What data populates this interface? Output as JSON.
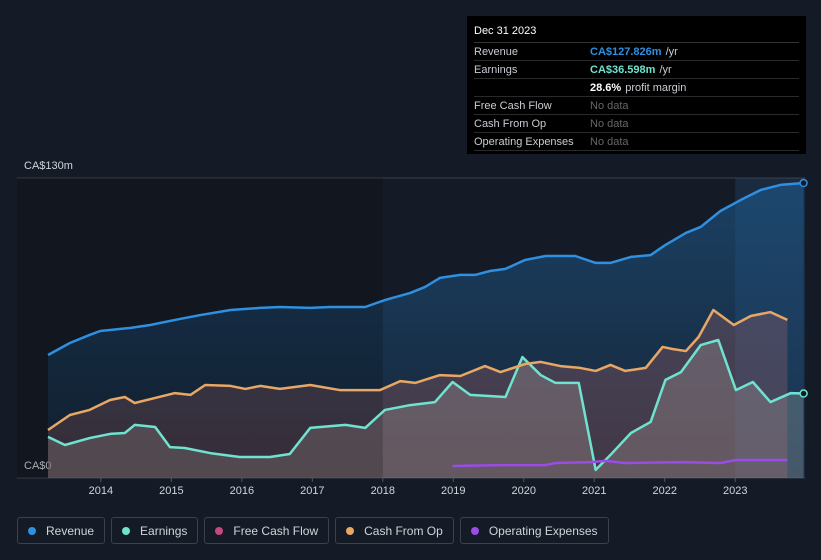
{
  "chart_data": {
    "type": "line",
    "xlim": [
      2012.81,
      2023.99
    ],
    "xticks": [
      2014,
      2015,
      2016,
      2017,
      2018,
      2019,
      2020,
      2021,
      2022,
      2023
    ],
    "ylim": [
      0,
      130
    ],
    "yticks": [
      {
        "value": 0,
        "label": "CA$0"
      },
      {
        "value": 130,
        "label": "CA$130m"
      }
    ],
    "grid": true,
    "series": [
      {
        "name": "Revenue",
        "color": "#2f8fe0",
        "x": [
          2013.25,
          2013.56,
          2013.84,
          2013.99,
          2014.41,
          2014.7,
          2015.05,
          2015.41,
          2015.84,
          2016.26,
          2016.54,
          2016.97,
          2017.25,
          2017.75,
          2018.03,
          2018.39,
          2018.6,
          2018.81,
          2019.1,
          2019.31,
          2019.52,
          2019.74,
          2020.02,
          2020.31,
          2020.73,
          2021.02,
          2021.23,
          2021.52,
          2021.8,
          2022.01,
          2022.3,
          2022.51,
          2022.79,
          2023.08,
          2023.36,
          2023.64,
          2023.97
        ],
        "values": [
          53.3,
          58.5,
          62,
          63.7,
          65,
          66.3,
          68.5,
          70.6,
          72.8,
          73.7,
          74.1,
          73.7,
          74.1,
          74.1,
          77.1,
          80.2,
          82.8,
          86.7,
          88,
          88,
          89.7,
          90.6,
          94.5,
          96.2,
          96.2,
          93.2,
          93.2,
          95.8,
          96.6,
          101,
          106.2,
          108.8,
          115.7,
          120.5,
          124.8,
          127,
          127.826
        ]
      },
      {
        "name": "Earnings",
        "color": "#6fe3cf",
        "x": [
          2013.25,
          2013.49,
          2013.84,
          2014.13,
          2014.34,
          2014.48,
          2014.77,
          2014.98,
          2015.19,
          2015.55,
          2015.97,
          2016.4,
          2016.68,
          2016.97,
          2017.47,
          2017.75,
          2018.03,
          2018.39,
          2018.74,
          2018.99,
          2019.24,
          2019.74,
          2019.98,
          2020.24,
          2020.45,
          2020.78,
          2021.02,
          2021.23,
          2021.52,
          2021.8,
          2022.01,
          2022.23,
          2022.51,
          2022.76,
          2023.01,
          2023.25,
          2023.5,
          2023.79,
          2023.97
        ],
        "values": [
          17.8,
          14.3,
          17.3,
          19.1,
          19.5,
          23,
          22.1,
          13.4,
          13,
          10.8,
          9.1,
          9.1,
          10.4,
          21.7,
          23,
          21.7,
          29.5,
          31.6,
          32.9,
          41.6,
          36,
          35.1,
          52.4,
          44.6,
          41.2,
          41.2,
          3.5,
          10,
          19.5,
          24.3,
          42.5,
          45.9,
          57.6,
          59.8,
          38.1,
          41.6,
          32.9,
          36.8,
          36.598
        ]
      },
      {
        "name": "Free Cash Flow",
        "color": "#c8477d",
        "x": [],
        "values": []
      },
      {
        "name": "Cash From Op",
        "color": "#e8a765",
        "x": [
          2013.25,
          2013.56,
          2013.84,
          2014.13,
          2014.34,
          2014.48,
          2014.77,
          2015.05,
          2015.27,
          2015.48,
          2015.84,
          2016.05,
          2016.26,
          2016.54,
          2016.97,
          2017.39,
          2017.96,
          2018.25,
          2018.46,
          2018.81,
          2019.1,
          2019.45,
          2019.67,
          2020.02,
          2020.24,
          2020.52,
          2020.8,
          2021.02,
          2021.23,
          2021.44,
          2021.73,
          2021.97,
          2022.11,
          2022.3,
          2022.48,
          2022.69,
          2022.98,
          2023.22,
          2023.5,
          2023.74
        ],
        "values": [
          20.8,
          27.3,
          29.5,
          33.8,
          35.1,
          32.5,
          34.7,
          36.8,
          36,
          40.3,
          39.9,
          38.6,
          39.9,
          38.6,
          40.3,
          38.1,
          38.1,
          42,
          41.2,
          44.6,
          44.2,
          48.5,
          45.9,
          49.4,
          50.3,
          48.5,
          47.7,
          46.4,
          49,
          46.4,
          47.7,
          56.8,
          55.9,
          55,
          61.1,
          72.8,
          66.3,
          70.2,
          71.9,
          68.5
        ]
      },
      {
        "name": "Operating Expenses",
        "color": "#9b4ce6",
        "x": [
          2018.99,
          2019.67,
          2020.31,
          2020.45,
          2020.95,
          2021.16,
          2021.44,
          2022.23,
          2022.79,
          2023.01,
          2023.74
        ],
        "values": [
          5.2,
          5.6,
          5.6,
          6.5,
          6.9,
          7.4,
          6.5,
          6.9,
          6.5,
          7.8,
          7.8
        ]
      }
    ]
  },
  "tooltip": {
    "date": "Dec 31 2023",
    "rows": [
      {
        "label": "Revenue",
        "value": "CA$127.826m",
        "unit": "/yr"
      },
      {
        "label": "Earnings",
        "value": "CA$36.598m",
        "unit": "/yr"
      },
      {
        "value": "28.6%",
        "unit": "profit margin"
      },
      {
        "label": "Free Cash Flow",
        "value": "No data"
      },
      {
        "label": "Cash From Op",
        "value": "No data"
      },
      {
        "label": "Operating Expenses",
        "value": "No data"
      }
    ]
  }
}
